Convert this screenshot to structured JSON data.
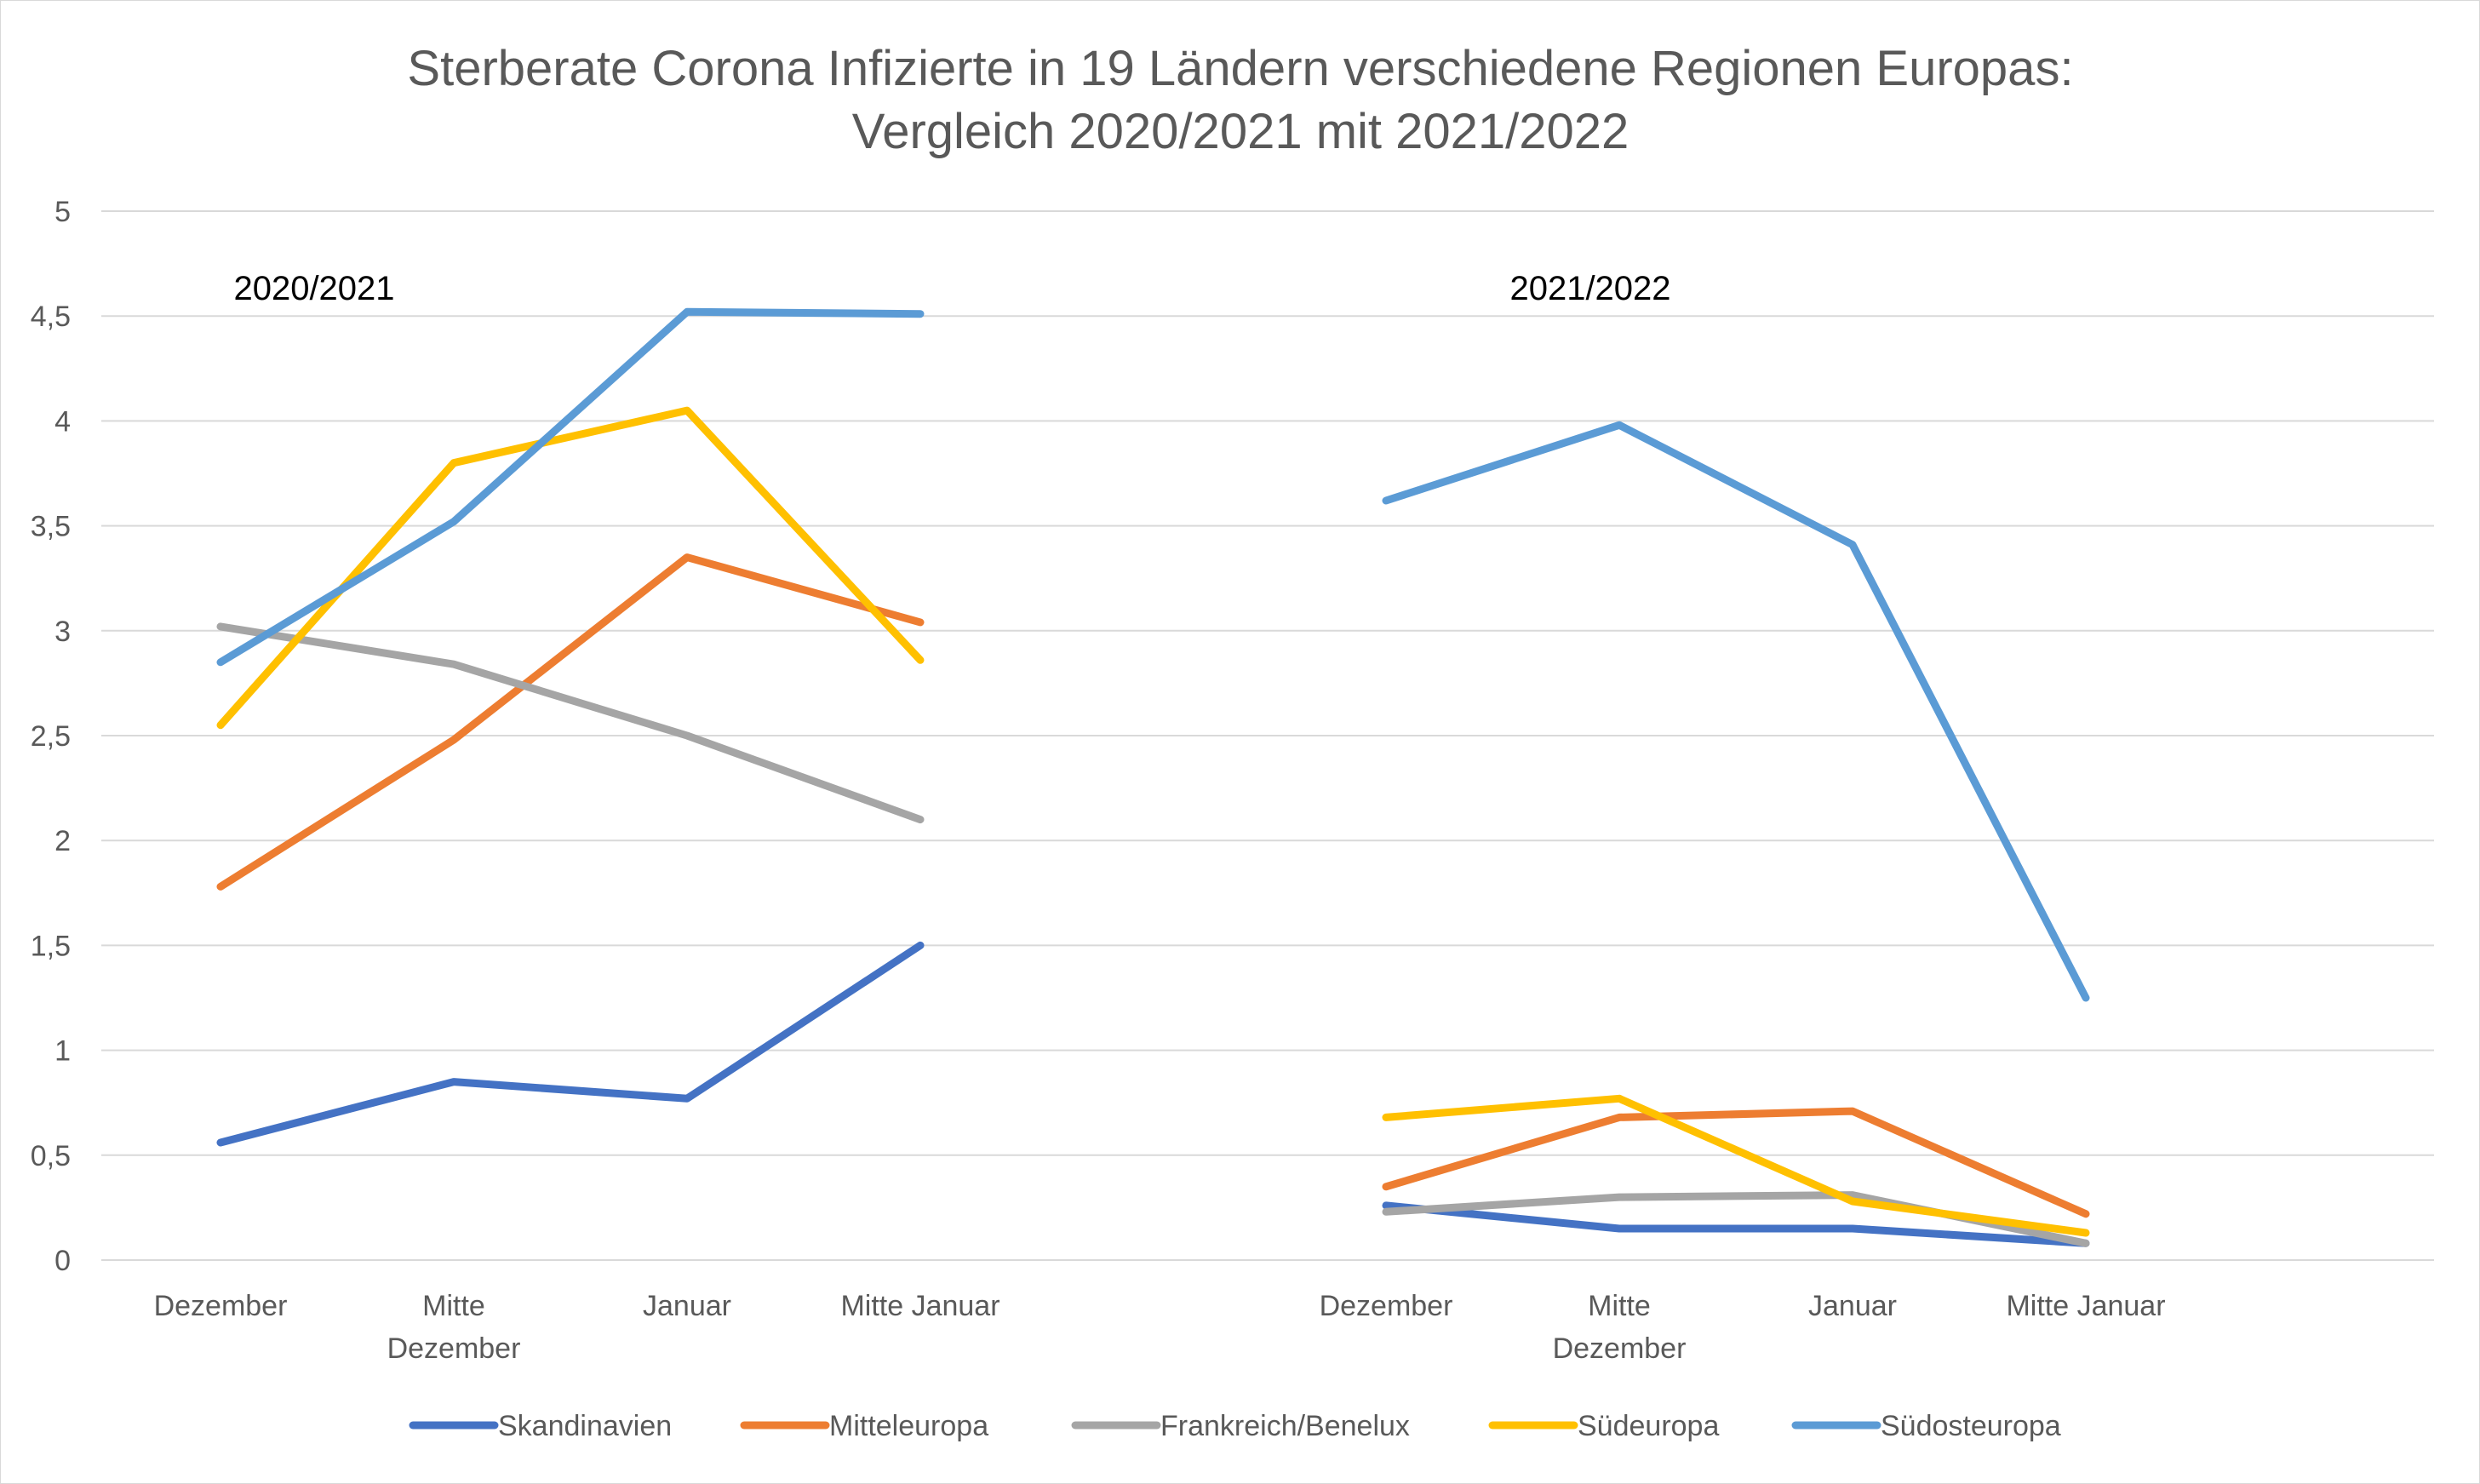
{
  "chart_data": {
    "type": "line",
    "title": [
      "Sterberate Corona Infizierte in 19 Ländern verschiedene Regionen Europas:",
      "Vergleich 2020/2021 mit 2021/2022"
    ],
    "ylim": [
      0,
      5
    ],
    "yticks": [
      "0",
      "0,5",
      "1",
      "1,5",
      "2",
      "2,5",
      "3",
      "3,5",
      "4",
      "4,5",
      "5"
    ],
    "grid": true,
    "legend_position": "bottom",
    "groups": [
      {
        "label": "2020/2021",
        "categories": [
          [
            "Dezember"
          ],
          [
            "Mitte",
            "Dezember"
          ],
          [
            "Januar"
          ],
          [
            "Mitte Januar"
          ]
        ]
      },
      {
        "label": "2021/2022",
        "categories": [
          [
            "Dezember"
          ],
          [
            "Mitte",
            "Dezember"
          ],
          [
            "Januar"
          ],
          [
            "Mitte Januar"
          ]
        ]
      }
    ],
    "series": [
      {
        "name": "Skandinavien",
        "color": "#4472C4",
        "values": [
          [
            0.56,
            0.85,
            0.77,
            1.5
          ],
          [
            0.26,
            0.15,
            0.15,
            0.08
          ]
        ]
      },
      {
        "name": "Mitteleuropa",
        "color": "#ED7D31",
        "values": [
          [
            1.78,
            2.48,
            3.35,
            3.04
          ],
          [
            0.35,
            0.68,
            0.71,
            0.22
          ]
        ]
      },
      {
        "name": "Frankreich/Benelux",
        "color": "#A5A5A5",
        "values": [
          [
            3.02,
            2.84,
            2.5,
            2.1
          ],
          [
            0.23,
            0.3,
            0.31,
            0.08
          ]
        ]
      },
      {
        "name": "Südeuropa",
        "color": "#FFC000",
        "values": [
          [
            2.55,
            3.8,
            4.05,
            2.86
          ],
          [
            0.68,
            0.77,
            0.28,
            0.13
          ]
        ]
      },
      {
        "name": "Südosteuropa",
        "color": "#5B9BD5",
        "values": [
          [
            2.85,
            3.52,
            4.52,
            4.51
          ],
          [
            3.62,
            3.98,
            3.41,
            1.25
          ]
        ]
      }
    ]
  }
}
